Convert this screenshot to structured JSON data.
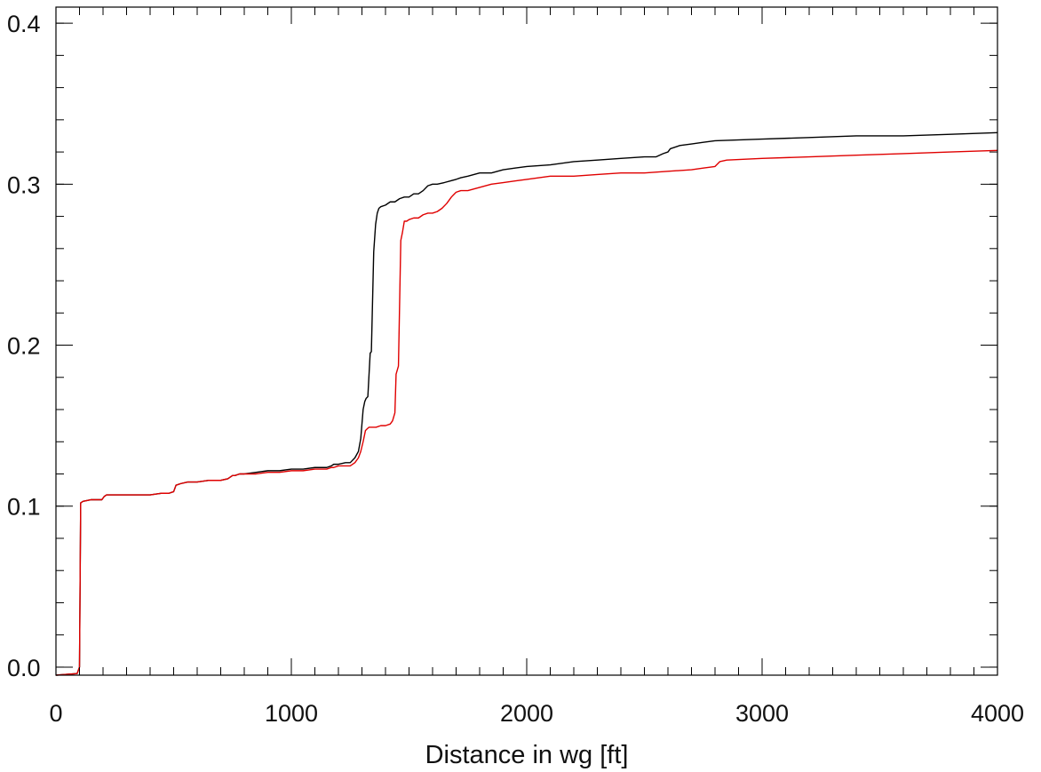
{
  "chart_data": {
    "type": "line",
    "title": "",
    "xlabel": "Distance in wg [ft]",
    "ylabel": "",
    "xlim": [
      0,
      4000
    ],
    "ylim": [
      -0.005,
      0.41
    ],
    "xticks": [
      0,
      1000,
      2000,
      3000,
      4000
    ],
    "xtick_labels": [
      "0",
      "1000",
      "2000",
      "3000",
      "4000"
    ],
    "x_minor_step": 100,
    "yticks": [
      0.0,
      0.1,
      0.2,
      0.3,
      0.4
    ],
    "ytick_labels": [
      "0.0",
      "0.1",
      "0.2",
      "0.3",
      "0.4"
    ],
    "y_minor_step": 0.02,
    "grid": false,
    "series": [
      {
        "color": "#000000",
        "x": [
          0,
          90,
          100,
          105,
          115,
          150,
          195,
          205,
          215,
          250,
          300,
          350,
          400,
          450,
          480,
          500,
          510,
          530,
          560,
          600,
          650,
          700,
          730,
          750,
          760,
          780,
          800,
          850,
          900,
          950,
          1000,
          1050,
          1100,
          1150,
          1170,
          1180,
          1200,
          1230,
          1250,
          1270,
          1285,
          1295,
          1305,
          1312,
          1318,
          1325,
          1335,
          1340,
          1350,
          1358,
          1365,
          1372,
          1380,
          1400,
          1420,
          1440,
          1460,
          1480,
          1500,
          1520,
          1540,
          1560,
          1580,
          1600,
          1620,
          1650,
          1700,
          1720,
          1750,
          1800,
          1850,
          1900,
          1950,
          2000,
          2100,
          2200,
          2300,
          2400,
          2500,
          2550,
          2580,
          2600,
          2610,
          2650,
          2700,
          2750,
          2800,
          3000,
          3200,
          3400,
          3600,
          3800,
          4000
        ],
        "y": [
          -0.005,
          -0.004,
          0.0,
          0.102,
          0.103,
          0.104,
          0.104,
          0.106,
          0.107,
          0.107,
          0.107,
          0.107,
          0.107,
          0.108,
          0.108,
          0.109,
          0.113,
          0.114,
          0.115,
          0.115,
          0.116,
          0.116,
          0.117,
          0.119,
          0.119,
          0.12,
          0.12,
          0.121,
          0.122,
          0.122,
          0.123,
          0.123,
          0.124,
          0.124,
          0.125,
          0.126,
          0.126,
          0.127,
          0.127,
          0.13,
          0.134,
          0.142,
          0.16,
          0.165,
          0.167,
          0.168,
          0.195,
          0.196,
          0.258,
          0.275,
          0.282,
          0.285,
          0.286,
          0.287,
          0.289,
          0.289,
          0.291,
          0.292,
          0.292,
          0.294,
          0.294,
          0.296,
          0.299,
          0.3,
          0.3,
          0.301,
          0.303,
          0.304,
          0.305,
          0.307,
          0.307,
          0.309,
          0.31,
          0.311,
          0.312,
          0.314,
          0.315,
          0.316,
          0.317,
          0.317,
          0.319,
          0.32,
          0.322,
          0.324,
          0.325,
          0.326,
          0.327,
          0.328,
          0.329,
          0.33,
          0.33,
          0.331,
          0.332
        ]
      },
      {
        "color": "#e00000",
        "x": [
          0,
          90,
          100,
          105,
          115,
          150,
          195,
          205,
          215,
          250,
          300,
          350,
          400,
          450,
          480,
          500,
          510,
          530,
          560,
          600,
          650,
          700,
          730,
          750,
          760,
          780,
          800,
          850,
          900,
          950,
          1000,
          1050,
          1100,
          1150,
          1170,
          1180,
          1200,
          1230,
          1250,
          1270,
          1285,
          1295,
          1305,
          1315,
          1322,
          1330,
          1340,
          1360,
          1380,
          1400,
          1420,
          1430,
          1440,
          1445,
          1455,
          1465,
          1472,
          1480,
          1490,
          1500,
          1520,
          1540,
          1560,
          1580,
          1600,
          1620,
          1640,
          1660,
          1680,
          1700,
          1720,
          1750,
          1800,
          1850,
          1900,
          1950,
          2000,
          2100,
          2200,
          2300,
          2400,
          2500,
          2600,
          2700,
          2750,
          2800,
          2820,
          2850,
          3000,
          3200,
          3400,
          3600,
          3800,
          4000
        ],
        "y": [
          -0.005,
          -0.004,
          0.0,
          0.102,
          0.103,
          0.104,
          0.104,
          0.106,
          0.107,
          0.107,
          0.107,
          0.107,
          0.107,
          0.108,
          0.108,
          0.109,
          0.113,
          0.114,
          0.115,
          0.115,
          0.116,
          0.116,
          0.117,
          0.119,
          0.119,
          0.12,
          0.12,
          0.12,
          0.121,
          0.121,
          0.122,
          0.122,
          0.123,
          0.123,
          0.124,
          0.124,
          0.125,
          0.125,
          0.125,
          0.127,
          0.13,
          0.134,
          0.14,
          0.147,
          0.148,
          0.149,
          0.149,
          0.149,
          0.15,
          0.15,
          0.151,
          0.153,
          0.158,
          0.182,
          0.187,
          0.265,
          0.27,
          0.277,
          0.277,
          0.278,
          0.279,
          0.279,
          0.281,
          0.282,
          0.282,
          0.283,
          0.285,
          0.288,
          0.292,
          0.295,
          0.296,
          0.296,
          0.298,
          0.3,
          0.301,
          0.302,
          0.303,
          0.305,
          0.305,
          0.306,
          0.307,
          0.307,
          0.308,
          0.309,
          0.31,
          0.311,
          0.314,
          0.315,
          0.316,
          0.317,
          0.318,
          0.319,
          0.32,
          0.321
        ]
      }
    ]
  }
}
